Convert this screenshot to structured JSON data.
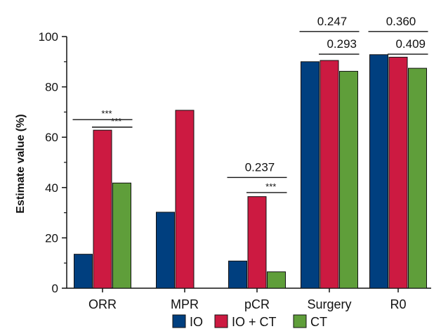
{
  "chart_data": {
    "type": "bar",
    "ylabel": "Estimate value (%)",
    "ylim": [
      0,
      100
    ],
    "yticks": [
      0,
      20,
      40,
      60,
      80,
      100
    ],
    "categories": [
      "ORR",
      "MPR",
      "pCR",
      "Surgery",
      "R0"
    ],
    "series": [
      {
        "name": "IO",
        "color": "#003f7f",
        "values": [
          13.5,
          30.2,
          10.8,
          90.0,
          92.8
        ]
      },
      {
        "name": "IO + CT",
        "color": "#cc1a41",
        "values": [
          62.8,
          70.7,
          36.4,
          90.5,
          91.8
        ]
      },
      {
        "name": "CT",
        "color": "#5f9e3a",
        "values": [
          41.8,
          null,
          6.5,
          86.2,
          87.4
        ]
      }
    ],
    "annotations": [
      {
        "category": 0,
        "from": "IO",
        "to": "CT",
        "text": "***",
        "level": 67
      },
      {
        "category": 0,
        "from": "IO + CT",
        "to": "CT",
        "text": "***",
        "level": 64
      },
      {
        "category": 2,
        "from": "IO",
        "to": "CT",
        "text": "0.237",
        "level": 44
      },
      {
        "category": 2,
        "from": "IO + CT",
        "to": "CT",
        "text": "***",
        "level": 38
      },
      {
        "category": 3,
        "from": "IO",
        "to": "CT",
        "text": "0.247",
        "level": 102
      },
      {
        "category": 3,
        "from": "IO + CT",
        "to": "CT",
        "text": "0.293",
        "level": 93
      },
      {
        "category": 4,
        "from": "IO",
        "to": "CT",
        "text": "0.360",
        "level": 102
      },
      {
        "category": 4,
        "from": "IO + CT",
        "to": "CT",
        "text": "0.409",
        "level": 93
      }
    ]
  }
}
